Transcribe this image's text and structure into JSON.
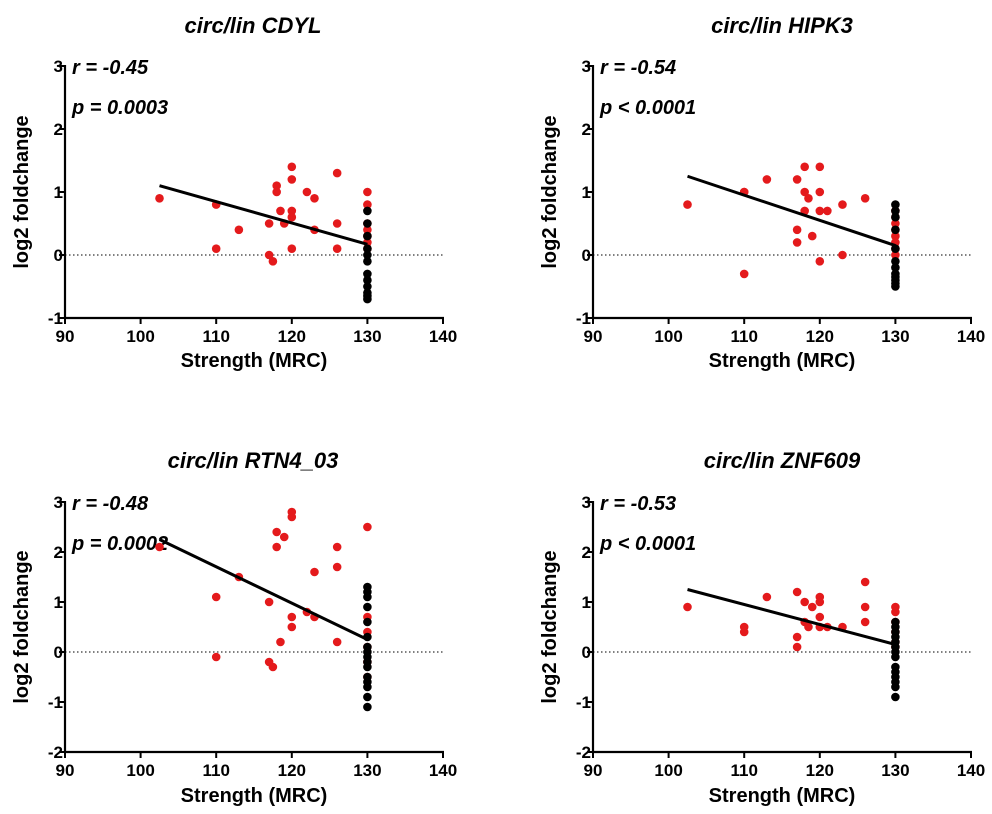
{
  "chart_data": [
    {
      "type": "scatter",
      "title": "circ/lin CDYL",
      "xlabel": "Strength (MRC)",
      "ylabel": "log2 foldchange",
      "xlim": [
        90,
        140
      ],
      "ylim": [
        -1,
        3
      ],
      "xticks": [
        90,
        100,
        110,
        120,
        130,
        140
      ],
      "yticks": [
        -1,
        0,
        1,
        2,
        3
      ],
      "stats": [
        "r = -0.45",
        "p = 0.0003"
      ],
      "colors": {
        "red_points": "#e41a1c",
        "black_points": "#000000"
      },
      "fit_line": {
        "x": [
          102.5,
          130
        ],
        "y": [
          1.1,
          0.17
        ]
      },
      "series": [
        {
          "color": "red",
          "x": [
            102.5,
            110,
            110,
            113,
            117,
            117,
            117.5,
            118,
            118,
            118.5,
            119,
            120,
            120,
            120,
            120,
            120,
            122,
            123,
            123,
            126,
            126,
            126,
            130,
            130,
            130,
            130,
            130,
            130,
            130
          ],
          "y": [
            0.9,
            0.8,
            0.1,
            0.4,
            0.5,
            0.0,
            -0.1,
            1.1,
            1.0,
            0.7,
            0.5,
            1.4,
            1.2,
            0.7,
            0.6,
            0.1,
            1.0,
            0.9,
            0.4,
            1.3,
            0.5,
            0.1,
            1.0,
            0.8,
            0.5,
            0.4,
            0.3,
            0.2,
            0.1
          ]
        },
        {
          "color": "black",
          "x": [
            130,
            130,
            130,
            130,
            130,
            130,
            130,
            130,
            130,
            130,
            130,
            130
          ],
          "y": [
            0.7,
            0.5,
            0.3,
            0.1,
            0.0,
            -0.1,
            -0.3,
            -0.4,
            -0.5,
            -0.6,
            -0.65,
            -0.7
          ]
        }
      ]
    },
    {
      "type": "scatter",
      "title": "circ/lin HIPK3",
      "xlabel": "Strength (MRC)",
      "ylabel": "log2 foldchange",
      "xlim": [
        90,
        140
      ],
      "ylim": [
        -1,
        3
      ],
      "xticks": [
        90,
        100,
        110,
        120,
        130,
        140
      ],
      "yticks": [
        -1,
        0,
        1,
        2,
        3
      ],
      "stats": [
        "r = -0.54",
        "p < 0.0001"
      ],
      "colors": {
        "red_points": "#e41a1c",
        "black_points": "#000000"
      },
      "fit_line": {
        "x": [
          102.5,
          130
        ],
        "y": [
          1.25,
          0.15
        ]
      },
      "series": [
        {
          "color": "red",
          "x": [
            102.5,
            110,
            110,
            110,
            113,
            117,
            117,
            117,
            118,
            118,
            118,
            118.5,
            119,
            120,
            120,
            120,
            120,
            121,
            123,
            123,
            126,
            130,
            130,
            130,
            130,
            130,
            130,
            130,
            130
          ],
          "y": [
            0.8,
            1.0,
            1.0,
            -0.3,
            1.2,
            1.2,
            0.4,
            0.2,
            1.4,
            1.0,
            0.7,
            0.9,
            0.3,
            1.4,
            1.0,
            0.7,
            -0.1,
            0.7,
            0.8,
            0.0,
            0.9,
            0.7,
            0.6,
            0.5,
            0.4,
            0.3,
            0.2,
            0.1,
            0.0
          ]
        },
        {
          "color": "black",
          "x": [
            130,
            130,
            130,
            130,
            130,
            130,
            130,
            130,
            130,
            130,
            130,
            130
          ],
          "y": [
            0.8,
            0.7,
            0.6,
            0.4,
            0.1,
            -0.1,
            -0.2,
            -0.3,
            -0.35,
            -0.4,
            -0.45,
            -0.5
          ]
        }
      ]
    },
    {
      "type": "scatter",
      "title": "circ/lin RTN4_03",
      "xlabel": "Strength (MRC)",
      "ylabel": "log2 foldchange",
      "xlim": [
        90,
        140
      ],
      "ylim": [
        -2,
        3
      ],
      "xticks": [
        90,
        100,
        110,
        120,
        130,
        140
      ],
      "yticks": [
        -2,
        -1,
        0,
        1,
        2,
        3
      ],
      "stats": [
        "r = -0.48",
        "p = 0.0002"
      ],
      "colors": {
        "red_points": "#e41a1c",
        "black_points": "#000000"
      },
      "fit_line": {
        "x": [
          102.5,
          130
        ],
        "y": [
          2.25,
          0.25
        ]
      },
      "series": [
        {
          "color": "red",
          "x": [
            102.5,
            110,
            110,
            113,
            117,
            117,
            117.5,
            118,
            118,
            118.5,
            119,
            120,
            120,
            120,
            120,
            122,
            123,
            123,
            126,
            126,
            126,
            130,
            130,
            130,
            130,
            130,
            130
          ],
          "y": [
            2.1,
            1.1,
            -0.1,
            1.5,
            1.0,
            -0.2,
            -0.3,
            2.4,
            2.1,
            0.2,
            2.3,
            2.8,
            2.7,
            0.7,
            0.5,
            0.8,
            1.6,
            0.7,
            2.1,
            1.7,
            0.2,
            2.5,
            0.7,
            0.4,
            0.1,
            -0.2,
            -0.5
          ]
        },
        {
          "color": "black",
          "x": [
            130,
            130,
            130,
            130,
            130,
            130,
            130,
            130,
            130,
            130,
            130,
            130,
            130,
            130,
            130,
            130
          ],
          "y": [
            1.3,
            1.2,
            1.1,
            0.9,
            0.6,
            0.3,
            0.1,
            0.0,
            -0.1,
            -0.2,
            -0.3,
            -0.5,
            -0.6,
            -0.7,
            -0.9,
            -1.1
          ]
        }
      ]
    },
    {
      "type": "scatter",
      "title": "circ/lin ZNF609",
      "xlabel": "Strength (MRC)",
      "ylabel": "log2 foldchange",
      "xlim": [
        90,
        140
      ],
      "ylim": [
        -2,
        3
      ],
      "xticks": [
        90,
        100,
        110,
        120,
        130,
        140
      ],
      "yticks": [
        -2,
        -1,
        0,
        1,
        2,
        3
      ],
      "stats": [
        "r = -0.53",
        "p < 0.0001"
      ],
      "colors": {
        "red_points": "#e41a1c",
        "black_points": "#000000"
      },
      "fit_line": {
        "x": [
          102.5,
          130
        ],
        "y": [
          1.25,
          0.15
        ]
      },
      "series": [
        {
          "color": "red",
          "x": [
            102.5,
            110,
            110,
            113,
            117,
            117,
            117,
            118,
            118,
            118.5,
            119,
            120,
            120,
            120,
            120,
            121,
            123,
            126,
            126,
            126,
            130,
            130,
            130,
            130,
            130,
            130
          ],
          "y": [
            0.9,
            0.5,
            0.4,
            1.1,
            1.2,
            0.3,
            0.1,
            1.0,
            0.6,
            0.5,
            0.9,
            1.1,
            1.0,
            0.7,
            0.5,
            0.5,
            0.5,
            1.4,
            0.9,
            0.6,
            0.9,
            0.8,
            0.6,
            0.4,
            0.2,
            0.1
          ]
        },
        {
          "color": "black",
          "x": [
            130,
            130,
            130,
            130,
            130,
            130,
            130,
            130,
            130,
            130,
            130,
            130,
            130,
            130
          ],
          "y": [
            0.6,
            0.5,
            0.4,
            0.3,
            0.2,
            0.1,
            0.0,
            -0.1,
            -0.3,
            -0.4,
            -0.5,
            -0.6,
            -0.7,
            -0.9
          ]
        }
      ]
    }
  ]
}
